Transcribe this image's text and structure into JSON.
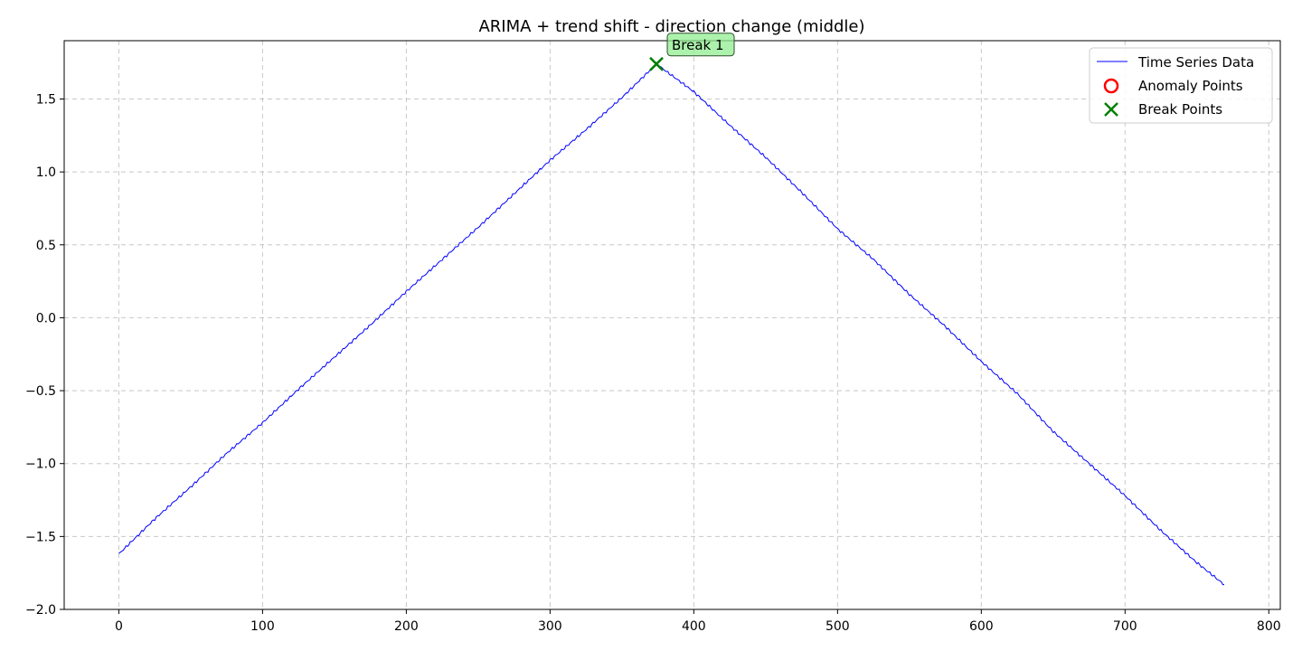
{
  "chart_data": {
    "type": "line",
    "title": "ARIMA + trend shift - direction change (middle)",
    "xlabel": "",
    "ylabel": "",
    "xlim": [
      -38,
      808
    ],
    "ylim": [
      -2.0,
      1.9
    ],
    "grid": true,
    "legend_position": "top-right",
    "x_ticks": [
      0,
      100,
      200,
      300,
      400,
      500,
      600,
      700,
      800
    ],
    "y_ticks": [
      -2.0,
      -1.5,
      -1.0,
      -0.5,
      0.0,
      0.5,
      1.0,
      1.5
    ],
    "x_tick_labels": [
      "0",
      "100",
      "200",
      "300",
      "400",
      "500",
      "600",
      "700",
      "800"
    ],
    "y_tick_labels": [
      "−2.0",
      "−1.5",
      "−1.0",
      "−0.5",
      "0.0",
      "0.5",
      "1.0",
      "1.5"
    ],
    "series": [
      {
        "name": "Time Series Data",
        "color": "#0000ff",
        "x": [
          0,
          25,
          50,
          75,
          100,
          125,
          150,
          175,
          200,
          225,
          250,
          275,
          300,
          325,
          350,
          374,
          400,
          425,
          450,
          475,
          500,
          525,
          550,
          575,
          600,
          625,
          650,
          675,
          700,
          725,
          750,
          769
        ],
        "y": [
          -1.62,
          -1.38,
          -1.16,
          -0.93,
          -0.72,
          -0.49,
          -0.27,
          -0.05,
          0.18,
          0.4,
          0.62,
          0.85,
          1.08,
          1.29,
          1.51,
          1.74,
          1.55,
          1.32,
          1.1,
          0.86,
          0.61,
          0.4,
          0.16,
          -0.06,
          -0.3,
          -0.52,
          -0.78,
          -1.0,
          -1.22,
          -1.46,
          -1.68,
          -1.83
        ]
      }
    ],
    "anomaly_points": {
      "name": "Anomaly Points",
      "color": "#ff0000",
      "x": [],
      "y": []
    },
    "break_points": {
      "name": "Break Points",
      "color": "#008000",
      "x": [
        374
      ],
      "y": [
        1.74
      ],
      "labels": [
        "Break 1"
      ]
    }
  }
}
